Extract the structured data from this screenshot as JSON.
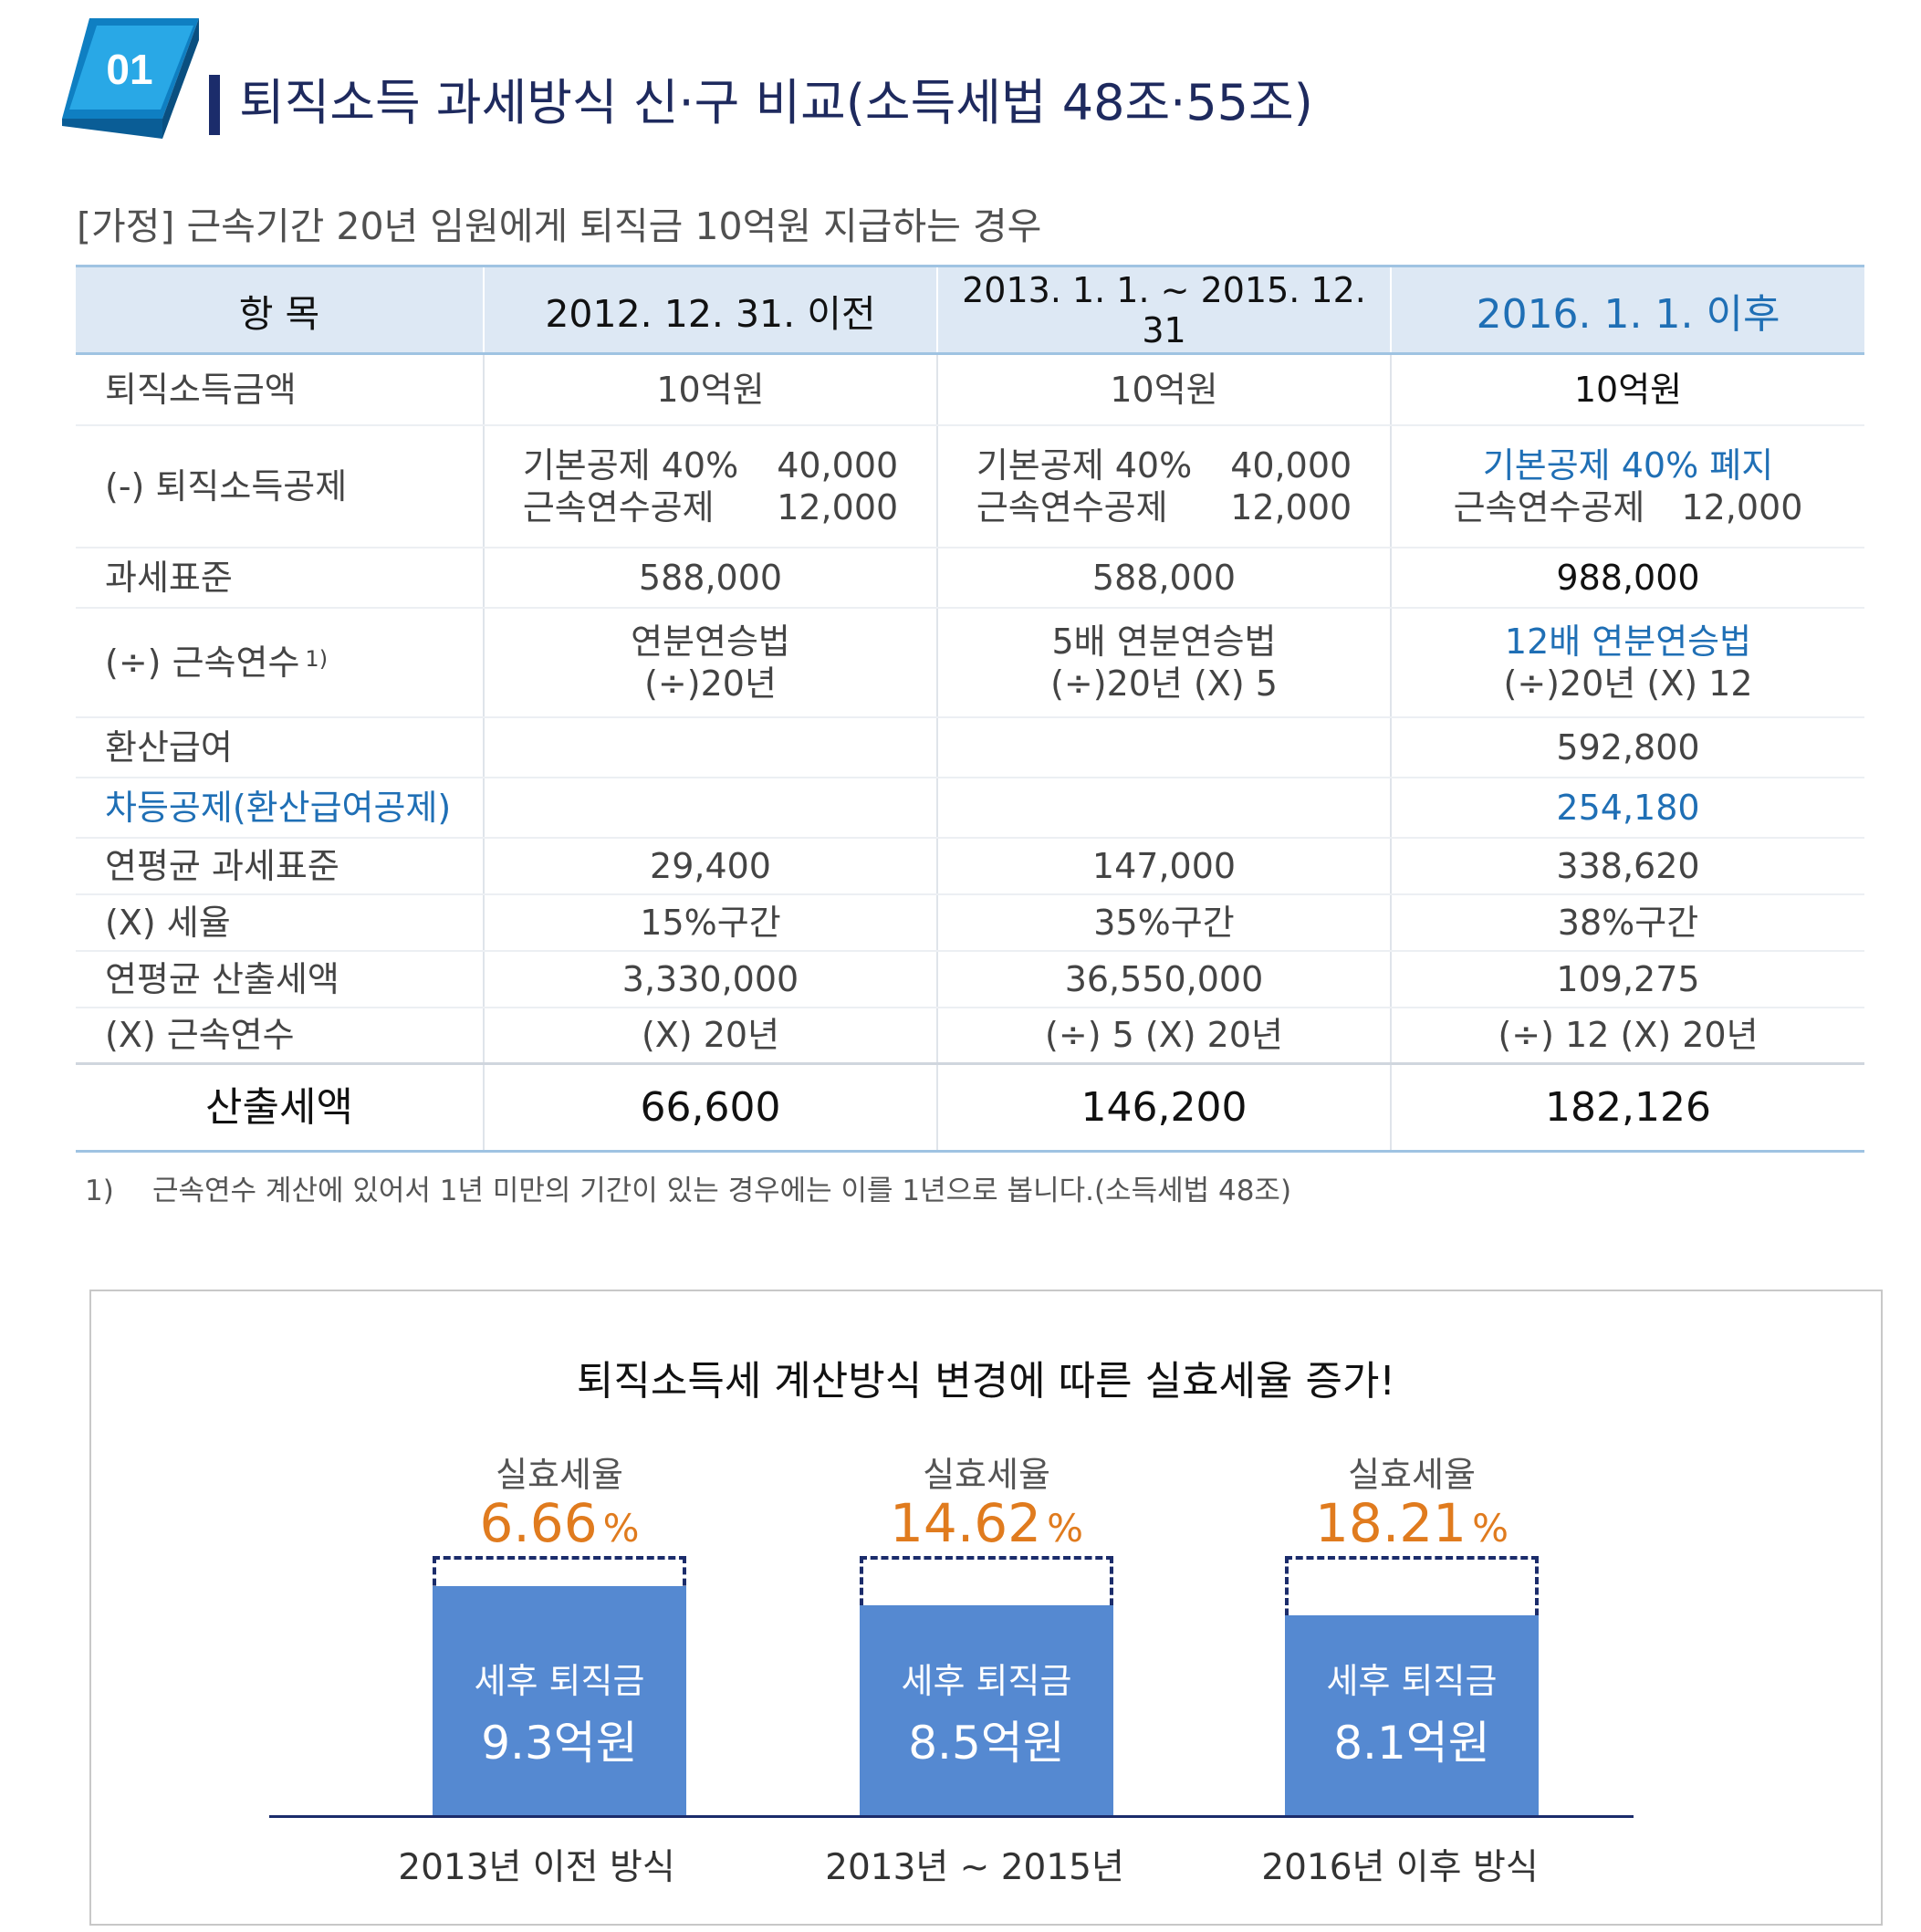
{
  "header": {
    "badge_number": "01",
    "title": "퇴직소득 과세방식 신·구  비교(소득세법 48조·55조)"
  },
  "assumption": "[가정]  근속기간 20년 임원에게 퇴직금 10억원 지급하는 경우",
  "table": {
    "headers": [
      "항 목",
      "2012. 12. 31. 이전",
      "2013. 1. 1. ~ 2015. 12. 31",
      "2016. 1. 1. 이후"
    ],
    "rows": {
      "income": {
        "label": "퇴직소득금액",
        "c1": "10억원",
        "c2": "10억원",
        "c3": "10억원"
      },
      "deduction": {
        "label": "(-) 퇴직소득공제",
        "c1": {
          "a_name": "기본공제 40%",
          "a_val": "40,000",
          "b_name": "근속연수공제",
          "b_val": "12,000"
        },
        "c2": {
          "a_name": "기본공제 40%",
          "a_val": "40,000",
          "b_name": "근속연수공제",
          "b_val": "12,000"
        },
        "c3": {
          "a_text": "기본공제 40% 폐지",
          "b_name": "근속연수공제",
          "b_val": "12,000"
        }
      },
      "tax_base": {
        "label": "과세표준",
        "c1": "588,000",
        "c2": "588,000",
        "c3": "988,000"
      },
      "years_div": {
        "label": "(÷) 근속연수",
        "label_sup": "1)",
        "c1_top": "연분연승법",
        "c1_bottom": "(÷)20년",
        "c2_top": "5배 연분연승법",
        "c2_bottom": "(÷)20년 (X) 5",
        "c3_top": "12배 연분연승법",
        "c3_bottom": "(÷)20년 (X) 12"
      },
      "converted_pay": {
        "label": "환산급여",
        "c1": "",
        "c2": "",
        "c3": "592,800"
      },
      "diff_deduction": {
        "label": "차등공제(환산급여공제)",
        "c1": "",
        "c2": "",
        "c3": "254,180"
      },
      "annual_base": {
        "label": "연평균 과세표준",
        "c1": "29,400",
        "c2": "147,000",
        "c3": "338,620"
      },
      "tax_rate": {
        "label": "(X) 세율",
        "c1": "15%구간",
        "c2": "35%구간",
        "c3": "38%구간"
      },
      "annual_tax": {
        "label": "연평균 산출세액",
        "c1": "3,330,000",
        "c2": "36,550,000",
        "c3": "109,275"
      },
      "years_mul": {
        "label": "(X) 근속연수",
        "c1": "(X) 20년",
        "c2": "(÷) 5 (X) 20년",
        "c3": "(÷) 12 (X) 20년"
      },
      "total": {
        "label": "산출세액",
        "c1": "66,600",
        "c2": "146,200",
        "c3": "182,126"
      }
    }
  },
  "footnote": {
    "num": "1)",
    "text": "근속연수 계산에 있어서 1년 미만의 기간이 있는 경우에는 이를 1년으로 봅니다.(소득세법 48조)"
  },
  "chart_data": {
    "type": "bar",
    "title": "퇴직소득세 계산방식 변경에 따른 실효세율 증가!",
    "categories": [
      "2013년 이전 방식",
      "2013년 ~ 2015년",
      "2016년 이후 방식"
    ],
    "effective_rate_label": "실효세율",
    "effective_rate_unit": "%",
    "effective_rates": [
      "6.66",
      "14.62",
      "18.21"
    ],
    "bar_label": "세후 퇴직금",
    "after_tax_values": [
      9.3,
      8.5,
      8.1
    ],
    "after_tax_texts": [
      "9.3억원",
      "8.5억원",
      "8.1억원"
    ],
    "full_value": 10,
    "colors": {
      "bar": "#5589d1",
      "dashed_outline": "#1b2c6b",
      "rate": "#e07b1e"
    }
  }
}
